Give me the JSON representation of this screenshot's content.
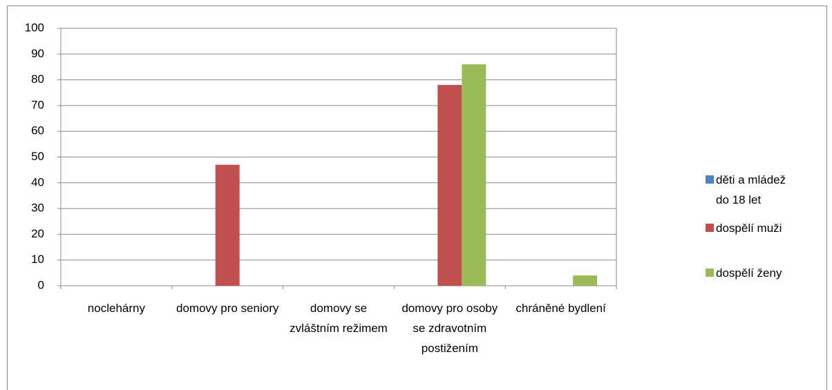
{
  "chart_data": {
    "type": "bar",
    "categories": [
      "noclehárny",
      "domovy pro seniory",
      "domovy se zvláštním režimem",
      "domovy pro osoby se zdravotním postižením",
      "chráněné bydlení"
    ],
    "series": [
      {
        "name": "děti a mládež do 18 let",
        "color": "#4f81bd",
        "values": [
          0,
          0,
          0,
          0,
          0
        ]
      },
      {
        "name": "dospělí muži",
        "color": "#c0504d",
        "values": [
          0,
          47,
          0,
          78,
          0
        ]
      },
      {
        "name": "dospělí ženy",
        "color": "#9bbb59",
        "values": [
          0,
          0,
          0,
          86,
          4
        ]
      }
    ],
    "ylim": [
      0,
      100
    ],
    "yticks": [
      0,
      10,
      20,
      30,
      40,
      50,
      60,
      70,
      80,
      90,
      100
    ],
    "grid": true,
    "legend": "right"
  }
}
